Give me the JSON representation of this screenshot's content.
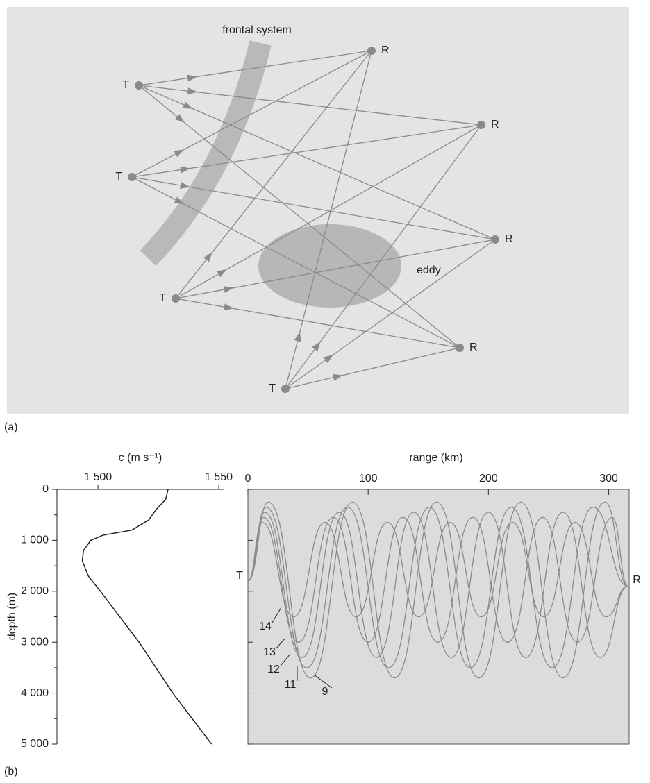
{
  "diagram": {
    "panel": "(a)",
    "front_label": "frontal system",
    "eddy_label": "eddy",
    "transmitters": [
      "T",
      "T",
      "T",
      "T"
    ],
    "receivers": [
      "R",
      "R",
      "R",
      "R"
    ]
  },
  "panel_b": "(b)",
  "chart_data": [
    {
      "type": "profile",
      "xlabel": "c (m s⁻¹)",
      "ylabel": "depth (m)",
      "xlim": [
        1483,
        1552
      ],
      "xticks": [
        {
          "value": 1500,
          "label": "1 500"
        },
        {
          "value": 1550,
          "label": "1 550"
        }
      ],
      "ylim": [
        0,
        5000
      ],
      "yticks": [
        0,
        {
          "value": 1000,
          "label": "1 000"
        },
        {
          "value": 2000,
          "label": "2 000"
        },
        {
          "value": 3000,
          "label": "3 000"
        },
        {
          "value": 4000,
          "label": "4 000"
        },
        {
          "value": 5000,
          "label": "5 000"
        }
      ],
      "yminorticks": [
        500,
        1500,
        2500,
        3500,
        4500
      ],
      "color": "#222222",
      "y": [
        0,
        100,
        200,
        400,
        600,
        800,
        900,
        1000,
        1200,
        1400,
        1700,
        2000,
        2500,
        3000,
        3500,
        4000,
        4500,
        5000
      ],
      "values": [
        1529,
        1528.5,
        1528,
        1524,
        1521,
        1514,
        1502,
        1497,
        1494,
        1493.5,
        1496,
        1501,
        1509,
        1517,
        1524,
        1531,
        1539,
        1547
      ]
    },
    {
      "type": "rays",
      "xlabel": "range (km)",
      "source_label": "T",
      "receiver_label": "R",
      "xlim": [
        0,
        317
      ],
      "xticks": [
        0,
        100,
        200,
        300
      ],
      "ylim": [
        0,
        5000
      ],
      "yticks": [
        0,
        1000,
        2000,
        3000,
        4000,
        5000
      ],
      "color": "#8a8a8a",
      "series": [
        {
          "name": "14",
          "x": [
            0,
            12,
            38,
            64,
            90,
            116,
            142,
            168,
            194,
            220,
            246,
            272,
            298,
            316
          ],
          "values": [
            1800,
            650,
            2500,
            650,
            2500,
            650,
            2500,
            650,
            2500,
            650,
            2500,
            650,
            2500,
            1900
          ]
        },
        {
          "name": "13",
          "x": [
            0,
            13,
            42,
            71,
            100,
            129,
            158,
            187,
            216,
            245,
            274,
            303,
            316
          ],
          "values": [
            1800,
            550,
            3000,
            550,
            3000,
            550,
            3000,
            550,
            3000,
            550,
            3000,
            550,
            1900
          ]
        },
        {
          "name": "12",
          "x": [
            0,
            14,
            45,
            76,
            107,
            138,
            169,
            200,
            231,
            262,
            293,
            316
          ],
          "values": [
            1800,
            450,
            3300,
            450,
            3300,
            450,
            3300,
            450,
            3300,
            450,
            3300,
            1900
          ]
        },
        {
          "name": "11",
          "x": [
            0,
            15,
            49,
            83,
            117,
            151,
            185,
            219,
            253,
            287,
            316
          ],
          "values": [
            1800,
            350,
            3500,
            350,
            3500,
            350,
            3500,
            350,
            3500,
            350,
            1900
          ]
        },
        {
          "name": "9",
          "x": [
            0,
            17,
            52,
            87,
            122,
            157,
            192,
            227,
            262,
            297,
            316
          ],
          "values": [
            1800,
            250,
            3700,
            250,
            3700,
            250,
            3700,
            250,
            3700,
            250,
            1900
          ]
        }
      ]
    }
  ]
}
